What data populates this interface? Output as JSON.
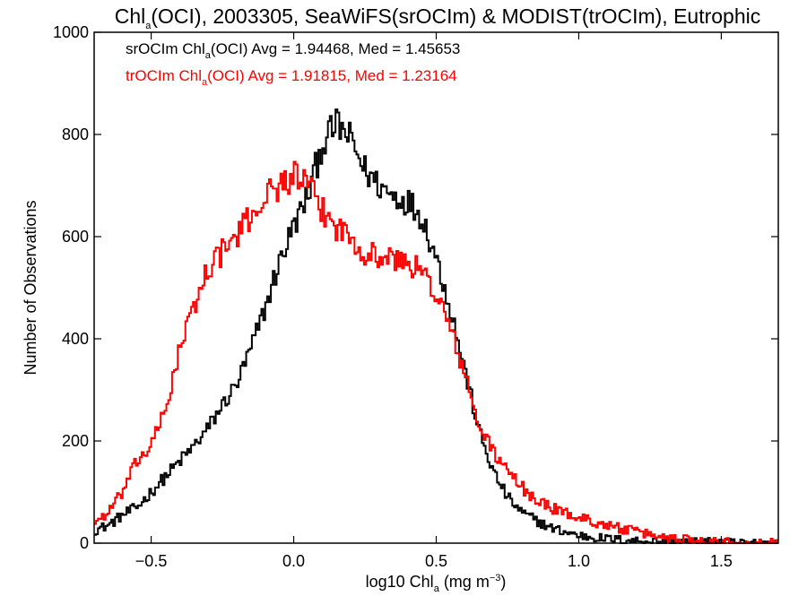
{
  "chart_data": {
    "type": "line",
    "title_parts": {
      "prefix": "Chl",
      "sub": "a",
      "rest": "(OCI), 2003305, SeaWiFS(srOCIm) & MODIST(trOCIm), Eutrophic"
    },
    "xlabel_parts": {
      "prefix": "log10 Chl",
      "sub": "a",
      "mid": " (mg m",
      "sup": "−3",
      "end": ")"
    },
    "ylabel": "Number of Observations",
    "xlim": [
      -0.7,
      1.7
    ],
    "ylim": [
      0,
      1000
    ],
    "xticks": [
      -0.5,
      0.0,
      0.5,
      1.0,
      1.5
    ],
    "xtick_labels": [
      "−0.5",
      "0.0",
      "0.5",
      "1.0",
      "1.5"
    ],
    "yticks": [
      0,
      200,
      400,
      600,
      800,
      1000
    ],
    "ytick_labels": [
      "0",
      "200",
      "400",
      "600",
      "800",
      "1000"
    ],
    "grid": false,
    "legend_position": "top-left",
    "series": [
      {
        "name": "srOCIm",
        "color": "#000000",
        "legend_parts": {
          "prefix": "srOCIm Chl",
          "sub": "a",
          "rest": "(OCI) Avg = 1.94468, Med = 1.45653"
        },
        "control_points": [
          [
            -0.7,
            25
          ],
          [
            -0.65,
            35
          ],
          [
            -0.6,
            55
          ],
          [
            -0.55,
            70
          ],
          [
            -0.5,
            100
          ],
          [
            -0.45,
            130
          ],
          [
            -0.4,
            160
          ],
          [
            -0.35,
            190
          ],
          [
            -0.3,
            225
          ],
          [
            -0.25,
            270
          ],
          [
            -0.2,
            310
          ],
          [
            -0.15,
            380
          ],
          [
            -0.1,
            460
          ],
          [
            -0.05,
            550
          ],
          [
            0.0,
            620
          ],
          [
            0.05,
            680
          ],
          [
            0.1,
            780
          ],
          [
            0.15,
            820
          ],
          [
            0.2,
            790
          ],
          [
            0.25,
            730
          ],
          [
            0.3,
            700
          ],
          [
            0.35,
            680
          ],
          [
            0.4,
            670
          ],
          [
            0.45,
            640
          ],
          [
            0.5,
            560
          ],
          [
            0.55,
            460
          ],
          [
            0.6,
            340
          ],
          [
            0.65,
            220
          ],
          [
            0.7,
            140
          ],
          [
            0.75,
            90
          ],
          [
            0.8,
            60
          ],
          [
            0.85,
            45
          ],
          [
            0.9,
            30
          ],
          [
            1.0,
            15
          ],
          [
            1.1,
            8
          ],
          [
            1.2,
            5
          ],
          [
            1.3,
            3
          ],
          [
            1.5,
            1
          ],
          [
            1.7,
            0
          ]
        ]
      },
      {
        "name": "trOCIm",
        "color": "#ff0000",
        "legend_parts": {
          "prefix": "trOCIm Chl",
          "sub": "a",
          "rest": "(OCI) Avg = 1.91815, Med = 1.23164"
        },
        "control_points": [
          [
            -0.7,
            40
          ],
          [
            -0.65,
            60
          ],
          [
            -0.6,
            100
          ],
          [
            -0.55,
            160
          ],
          [
            -0.5,
            190
          ],
          [
            -0.45,
            260
          ],
          [
            -0.4,
            380
          ],
          [
            -0.35,
            460
          ],
          [
            -0.3,
            540
          ],
          [
            -0.25,
            570
          ],
          [
            -0.2,
            600
          ],
          [
            -0.15,
            640
          ],
          [
            -0.1,
            680
          ],
          [
            -0.05,
            700
          ],
          [
            0.0,
            720
          ],
          [
            0.05,
            700
          ],
          [
            0.1,
            650
          ],
          [
            0.15,
            620
          ],
          [
            0.2,
            600
          ],
          [
            0.25,
            570
          ],
          [
            0.3,
            560
          ],
          [
            0.35,
            555
          ],
          [
            0.4,
            550
          ],
          [
            0.45,
            530
          ],
          [
            0.5,
            490
          ],
          [
            0.55,
            420
          ],
          [
            0.6,
            330
          ],
          [
            0.65,
            230
          ],
          [
            0.7,
            180
          ],
          [
            0.75,
            140
          ],
          [
            0.8,
            110
          ],
          [
            0.85,
            85
          ],
          [
            0.9,
            70
          ],
          [
            1.0,
            50
          ],
          [
            1.1,
            35
          ],
          [
            1.2,
            22
          ],
          [
            1.3,
            12
          ],
          [
            1.4,
            7
          ],
          [
            1.5,
            3
          ],
          [
            1.6,
            1
          ],
          [
            1.7,
            0
          ]
        ]
      }
    ]
  }
}
